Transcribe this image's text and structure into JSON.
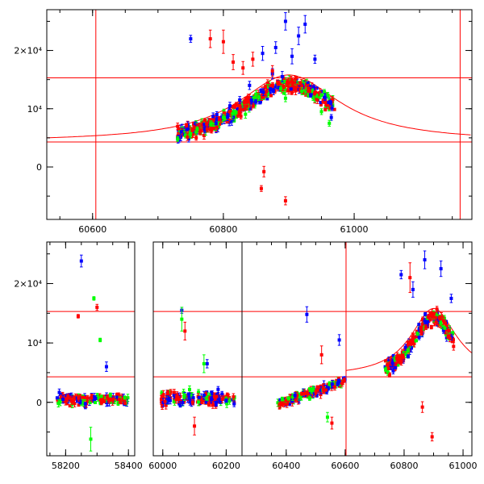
{
  "figure_title": "",
  "colors": {
    "frame": "#000000",
    "model": "#ff0000",
    "series_blue": "#0000ff",
    "series_green": "#00ff00",
    "series_red": "#ff0000"
  },
  "chart_data": [
    {
      "type": "scatter",
      "panel": "top",
      "title": "",
      "xlabel": "",
      "ylabel": "",
      "xlim": [
        60530,
        61180
      ],
      "ylim": [
        -9000,
        27000
      ],
      "x_ticks": [
        {
          "value": 60600,
          "label": "60600"
        },
        {
          "value": 60800,
          "label": "60800"
        },
        {
          "value": 61000,
          "label": "61000"
        }
      ],
      "y_ticks": [
        {
          "value": 0,
          "label": "0"
        },
        {
          "value": 10000,
          "label": "10⁴"
        },
        {
          "value": 20000,
          "label": "2×10⁴"
        }
      ],
      "hlines": [
        4300,
        15300
      ],
      "vlines": [
        60605,
        61162
      ],
      "model_curve": {
        "center": 60900,
        "peak": 15800,
        "base": 4300,
        "width": 95
      },
      "series": [
        {
          "name": "blue",
          "color": "#0000ff",
          "points": [
            [
              60750,
              22000,
              600
            ],
            [
              60790,
              9000,
              500
            ],
            [
              60810,
              10500,
              600
            ],
            [
              60825,
              11500,
              600
            ],
            [
              60840,
              14000,
              700
            ],
            [
              60860,
              19500,
              1200
            ],
            [
              60875,
              16000,
              900
            ],
            [
              60890,
              15500,
              900
            ],
            [
              60905,
              19000,
              1300
            ],
            [
              60915,
              22500,
              1500
            ],
            [
              60925,
              24500,
              1500
            ],
            [
              60940,
              18500,
              700
            ],
            [
              60955,
              12000,
              600
            ],
            [
              60965,
              8500,
              500
            ],
            [
              60880,
              20500,
              1000
            ],
            [
              60895,
              25000,
              1500
            ]
          ]
        },
        {
          "name": "green",
          "color": "#00ff00",
          "points": [
            [
              60730,
              4800,
              400
            ],
            [
              60760,
              6500,
              400
            ],
            [
              60800,
              8500,
              500
            ],
            [
              60850,
              12500,
              600
            ],
            [
              60895,
              11800,
              600
            ],
            [
              60920,
              13000,
              600
            ],
            [
              60950,
              9500,
              500
            ],
            [
              60962,
              7500,
              500
            ]
          ]
        },
        {
          "name": "red",
          "color": "#ff0000",
          "points": [
            [
              60780,
              22000,
              1500
            ],
            [
              60800,
              21500,
              2000
            ],
            [
              60815,
              18000,
              1300
            ],
            [
              60830,
              17000,
              1100
            ],
            [
              60845,
              18500,
              1200
            ],
            [
              60862,
              -800,
              900
            ],
            [
              60858,
              -3700,
              500
            ],
            [
              60895,
              -5800,
              700
            ],
            [
              60875,
              16500,
              900
            ],
            [
              60900,
              14500,
              800
            ],
            [
              60930,
              13500,
              700
            ]
          ]
        }
      ]
    },
    {
      "type": "scatter",
      "panel": "bottom",
      "title": "",
      "xlabel": "",
      "ylabel": "",
      "segments": [
        {
          "xlim": [
            58140,
            58420
          ]
        },
        {
          "xlim": [
            59970,
            60250
          ]
        },
        {
          "xlim": [
            60250,
            61030
          ]
        }
      ],
      "ylim": [
        -9000,
        27000
      ],
      "x_ticks": [
        {
          "value": 58200,
          "label": "58200",
          "segment": 0
        },
        {
          "value": 58400,
          "label": "58400",
          "segment": 0
        },
        {
          "value": 60000,
          "label": "60000",
          "segment": 1
        },
        {
          "value": 60200,
          "label": "60200",
          "segment": 1
        },
        {
          "value": 60400,
          "label": "60400",
          "segment": 2
        },
        {
          "value": 60600,
          "label": "60600",
          "segment": 2
        },
        {
          "value": 60800,
          "label": "60800",
          "segment": 2
        },
        {
          "value": 61000,
          "label": "61000",
          "segment": 2
        }
      ],
      "y_ticks": [
        {
          "value": 0,
          "label": "0"
        },
        {
          "value": 10000,
          "label": "10⁴"
        },
        {
          "value": 20000,
          "label": "2×10⁴"
        }
      ],
      "hlines": [
        4300,
        15300
      ],
      "vlines": [
        {
          "value": 60603,
          "segment": 2
        }
      ],
      "model_curve": {
        "center": 60900,
        "peak": 15800,
        "base": 4300,
        "width": 95,
        "start": 60603
      },
      "series": [
        {
          "name": "blue",
          "color": "#0000ff",
          "points": [
            [
              58250,
              23800,
              1000
            ],
            [
              58330,
              6000,
              800
            ],
            [
              60060,
              15500,
              500
            ],
            [
              60140,
              6500,
              700
            ],
            [
              60470,
              14800,
              1300
            ],
            [
              60580,
              10500,
              900
            ],
            [
              60790,
              21500,
              700
            ],
            [
              60830,
              19000,
              1300
            ],
            [
              60870,
              24000,
              1500
            ],
            [
              60925,
              22500,
              1300
            ],
            [
              60960,
              17500,
              700
            ]
          ]
        },
        {
          "name": "green",
          "color": "#00ff00",
          "points": [
            [
              58290,
              17500,
              300
            ],
            [
              58310,
              10500,
              300
            ],
            [
              58280,
              -6200,
              2000
            ],
            [
              60060,
              14000,
              2000
            ],
            [
              60130,
              6500,
              1500
            ],
            [
              60540,
              -2500,
              800
            ]
          ]
        },
        {
          "name": "red",
          "color": "#ff0000",
          "points": [
            [
              58240,
              14500,
              300
            ],
            [
              58300,
              16000,
              500
            ],
            [
              60070,
              12000,
              1500
            ],
            [
              60100,
              -4000,
              1500
            ],
            [
              60520,
              8000,
              1500
            ],
            [
              60555,
              -3500,
              1000
            ],
            [
              60820,
              21000,
              2500
            ],
            [
              60862,
              -800,
              900
            ],
            [
              60895,
              -5800,
              700
            ]
          ]
        }
      ],
      "clusters": [
        {
          "x0": 58170,
          "x1": 58400,
          "mean": 500,
          "spread": 900,
          "n": 160,
          "seed": 11
        },
        {
          "x0": 59995,
          "x1": 60230,
          "mean": 700,
          "spread": 1200,
          "n": 170,
          "seed": 23
        },
        {
          "x0": 60370,
          "x1": 60600,
          "mean": 0,
          "spread": 700,
          "n": 170,
          "seed": 37,
          "trend": [
            -300,
            3500
          ]
        },
        {
          "x0": 60735,
          "x1": 60970,
          "mean": "model",
          "spread": 1200,
          "n": 240,
          "seed": 51
        }
      ]
    }
  ]
}
